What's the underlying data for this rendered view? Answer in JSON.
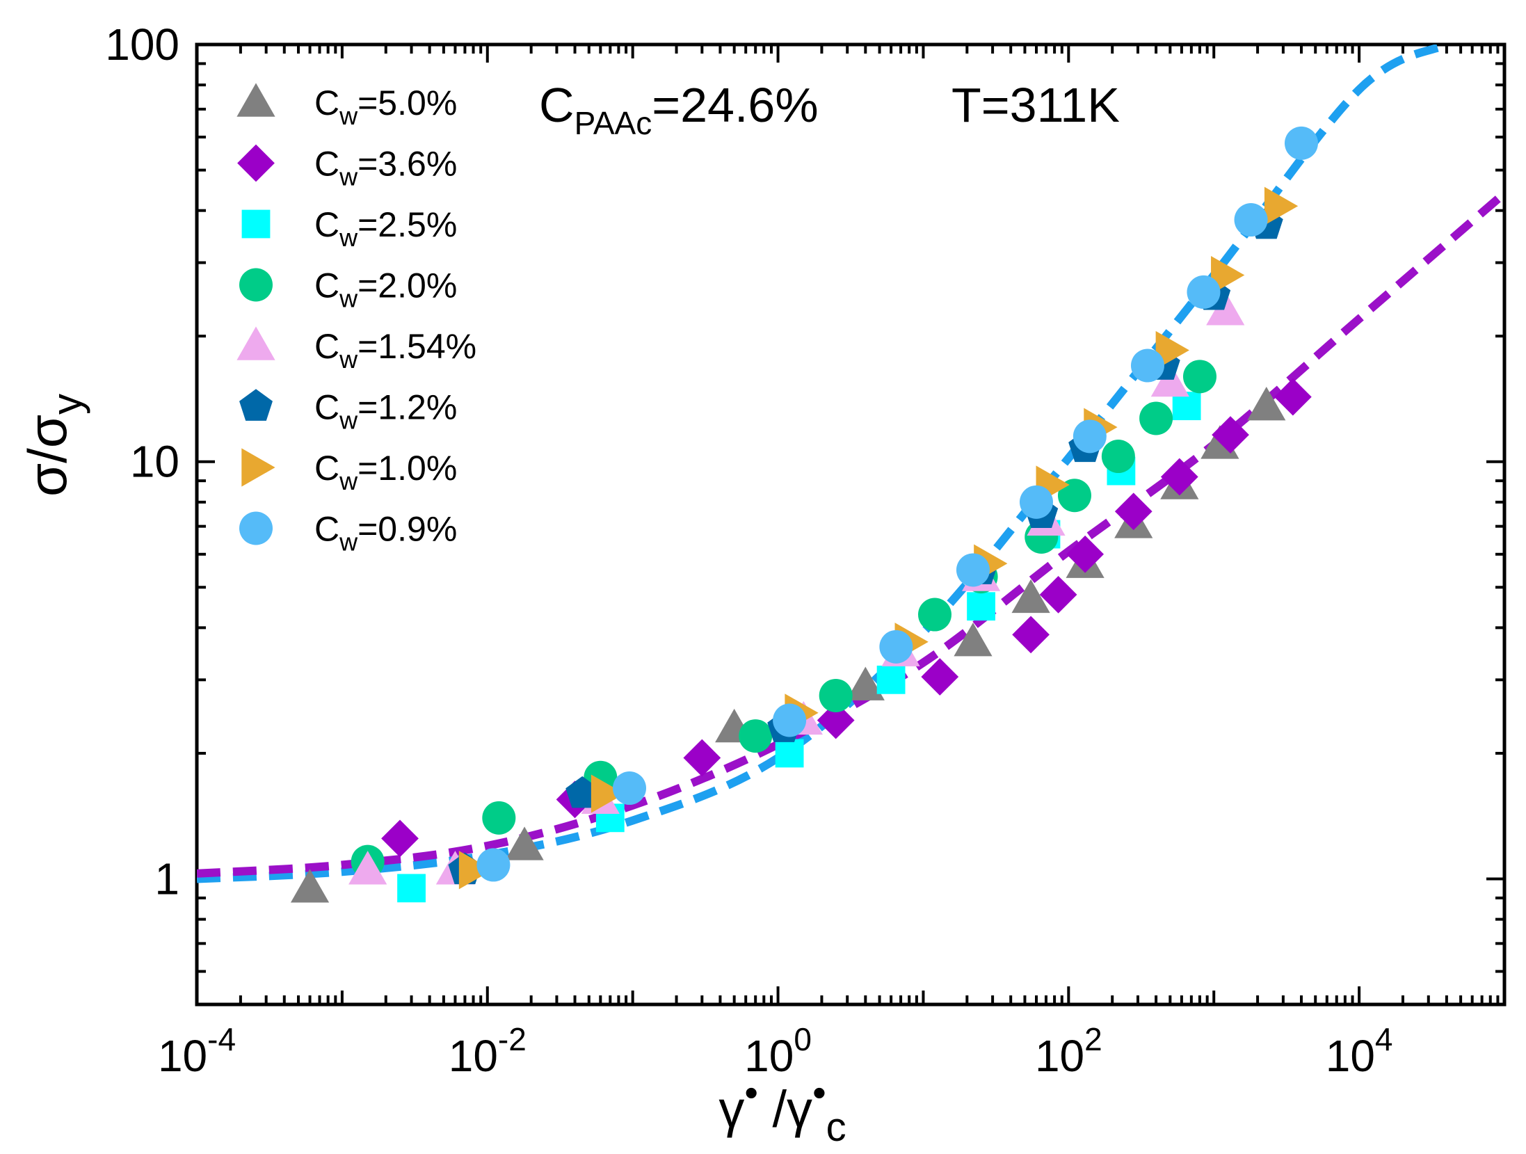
{
  "chart_data": {
    "type": "scatter",
    "xscale": "log",
    "yscale": "log",
    "xlim": [
      0.0001,
      100000
    ],
    "ylim": [
      0.5,
      100
    ],
    "xticks": [
      {
        "value": 0.0001,
        "base": "10",
        "exp": "-4"
      },
      {
        "value": 0.01,
        "base": "10",
        "exp": "-2"
      },
      {
        "value": 1,
        "base": "10",
        "exp": "0"
      },
      {
        "value": 100,
        "base": "10",
        "exp": "2"
      },
      {
        "value": 10000,
        "base": "10",
        "exp": "4"
      }
    ],
    "yticks": [
      {
        "value": 1,
        "label": "1"
      },
      {
        "value": 10,
        "label": "10"
      },
      {
        "value": 100,
        "label": "100"
      }
    ],
    "xlabel": {
      "main1": "γ",
      "dot1": "•",
      "sep": " /γ",
      "dot2": "•",
      "sub": "c"
    },
    "ylabel": {
      "main": "σ/σ",
      "sub": "y"
    },
    "annotations": {
      "conc": {
        "main": "C",
        "sub": "PAAc",
        "rest": "=24.6%"
      },
      "temp": "T=311K"
    },
    "legend_position": "top-left",
    "series": [
      {
        "name": "Cw=5.0%",
        "label_main": "C",
        "label_sub": "w",
        "label_rest": "=5.0%",
        "marker": "triangle",
        "color": "#808080",
        "points": [
          [
            0.0006,
            0.95
          ],
          [
            0.018,
            1.2
          ],
          [
            0.5,
            2.3
          ],
          [
            4,
            2.9
          ],
          [
            22,
            3.7
          ],
          [
            55,
            4.7
          ],
          [
            130,
            5.7
          ],
          [
            280,
            7.1
          ],
          [
            580,
            8.8
          ],
          [
            1100,
            11
          ],
          [
            2300,
            13.6
          ]
        ]
      },
      {
        "name": "Cw=3.6%",
        "label_main": "C",
        "label_sub": "w",
        "label_rest": "=3.6%",
        "marker": "diamond",
        "color": "#9b00c8",
        "points": [
          [
            0.0025,
            1.25
          ],
          [
            0.04,
            1.55
          ],
          [
            0.3,
            1.95
          ],
          [
            2.5,
            2.4
          ],
          [
            13,
            3.05
          ],
          [
            55,
            3.85
          ],
          [
            85,
            4.8
          ],
          [
            130,
            6
          ],
          [
            280,
            7.6
          ],
          [
            580,
            9.2
          ],
          [
            1300,
            11.6
          ],
          [
            3500,
            14.3
          ]
        ]
      },
      {
        "name": "Cw=2.5%",
        "label_main": "C",
        "label_sub": "w",
        "label_rest": "=2.5%",
        "marker": "square",
        "color": "#00ffff",
        "points": [
          [
            0.003,
            0.95
          ],
          [
            0.07,
            1.4
          ],
          [
            1.2,
            2
          ],
          [
            6,
            3
          ],
          [
            25,
            4.5
          ],
          [
            70,
            6.7
          ],
          [
            230,
            9.5
          ],
          [
            650,
            13.6
          ]
        ]
      },
      {
        "name": "Cw=2.0%",
        "label_main": "C",
        "label_sub": "w",
        "label_rest": "=2.0%",
        "marker": "circle",
        "color": "#00cc88",
        "points": [
          [
            0.0015,
            1.1
          ],
          [
            0.012,
            1.4
          ],
          [
            0.06,
            1.75
          ],
          [
            0.7,
            2.2
          ],
          [
            2.5,
            2.75
          ],
          [
            12,
            4.3
          ],
          [
            25,
            5.3
          ],
          [
            65,
            6.6
          ],
          [
            110,
            8.3
          ],
          [
            220,
            10.3
          ],
          [
            400,
            12.7
          ],
          [
            800,
            16
          ]
        ]
      },
      {
        "name": "Cw=1.54%",
        "label_main": "C",
        "label_sub": "w",
        "label_rest": "=1.54%",
        "marker": "triangle",
        "color": "#eeaaee",
        "points": [
          [
            0.0015,
            1.05
          ],
          [
            0.006,
            1.05
          ],
          [
            0.06,
            1.55
          ],
          [
            1.5,
            2.4
          ],
          [
            7,
            3.5
          ],
          [
            25,
            5.3
          ],
          [
            70,
            7.2
          ],
          [
            500,
            15.5
          ],
          [
            1200,
            23
          ]
        ]
      },
      {
        "name": "Cw=1.2%",
        "label_main": "C",
        "label_sub": "w",
        "label_rest": "=1.2%",
        "marker": "pentagon",
        "color": "#0068a8",
        "points": [
          [
            0.007,
            1.05
          ],
          [
            0.045,
            1.6
          ],
          [
            1.1,
            2.3
          ],
          [
            25,
            5.5
          ],
          [
            65,
            7.5
          ],
          [
            130,
            10.8
          ],
          [
            450,
            17
          ],
          [
            1000,
            25
          ],
          [
            2300,
            37
          ]
        ]
      },
      {
        "name": "Cw=1.0%",
        "label_main": "C",
        "label_sub": "w",
        "label_rest": "=1.0%",
        "marker": "triangle-right",
        "color": "#e8a830",
        "points": [
          [
            0.008,
            1.05
          ],
          [
            0.065,
            1.6
          ],
          [
            1.4,
            2.5
          ],
          [
            8,
            3.7
          ],
          [
            28,
            5.7
          ],
          [
            75,
            8.8
          ],
          [
            160,
            12.1
          ],
          [
            500,
            18.5
          ],
          [
            1200,
            28
          ],
          [
            2800,
            41
          ]
        ]
      },
      {
        "name": "Cw=0.9%",
        "label_main": "C",
        "label_sub": "w",
        "label_rest": "=0.9%",
        "marker": "circle",
        "color": "#55bbf8",
        "points": [
          [
            0.011,
            1.08
          ],
          [
            0.095,
            1.65
          ],
          [
            1.2,
            2.4
          ],
          [
            6.5,
            3.6
          ],
          [
            22,
            5.5
          ],
          [
            60,
            8
          ],
          [
            140,
            11.5
          ],
          [
            350,
            17
          ],
          [
            850,
            25.5
          ],
          [
            1800,
            38
          ],
          [
            4000,
            58
          ]
        ]
      }
    ],
    "fits": [
      {
        "name": "fit-blue",
        "color": "#1ea0f0",
        "points": [
          [
            0.0001,
            1
          ],
          [
            0.001,
            1.04
          ],
          [
            0.01,
            1.14
          ],
          [
            0.1,
            1.38
          ],
          [
            1,
            1.95
          ],
          [
            10,
            3.9
          ],
          [
            100,
            10.2
          ],
          [
            1000,
            28
          ],
          [
            10000,
            78
          ],
          [
            40000,
            100
          ]
        ]
      },
      {
        "name": "fit-purple",
        "color": "#9b10c8",
        "points": [
          [
            0.0001,
            1.03
          ],
          [
            0.001,
            1.08
          ],
          [
            0.01,
            1.2
          ],
          [
            0.1,
            1.5
          ],
          [
            1,
            2.1
          ],
          [
            10,
            3.3
          ],
          [
            100,
            6.1
          ],
          [
            1000,
            11
          ],
          [
            10000,
            22
          ],
          [
            100000,
            44
          ]
        ]
      }
    ]
  }
}
